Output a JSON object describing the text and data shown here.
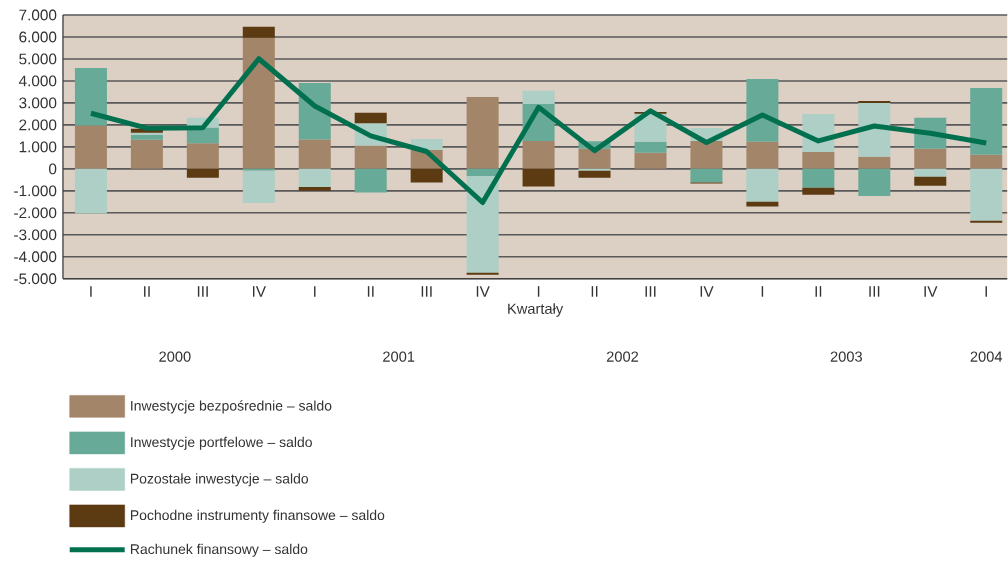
{
  "chart_data": {
    "type": "bar",
    "stacked": true,
    "xlabel": "Kwartały",
    "categories": [
      "I",
      "II",
      "III",
      "IV",
      "I",
      "II",
      "III",
      "IV",
      "I",
      "II",
      "III",
      "IV",
      "I",
      "II",
      "III",
      "IV",
      "I"
    ],
    "series": [
      {
        "name": "Inwestycje bezpośrednie – saldo",
        "color": "#a3856a",
        "values": [
          1970,
          1320,
          1170,
          5970,
          1330,
          1060,
          860,
          3270,
          1270,
          910,
          730,
          1270,
          1230,
          770,
          550,
          910,
          640
        ]
      },
      {
        "name": "Inwestycje portfelowe – saldo",
        "color": "#68aa98",
        "values": [
          2620,
          230,
          710,
          -90,
          2580,
          -1080,
          0,
          -320,
          1680,
          350,
          500,
          -620,
          2860,
          -860,
          -1230,
          1410,
          3040
        ]
      },
      {
        "name": "Pozostałe inwestycje – saldo",
        "color": "#adcfc6",
        "values": [
          -2030,
          90,
          450,
          -1460,
          -820,
          1020,
          500,
          -4410,
          600,
          -90,
          1280,
          590,
          -1500,
          1730,
          2450,
          -360,
          -2360
        ]
      },
      {
        "name": "Pochodne instrumenty finansowe – saldo",
        "color": "#5c3a12",
        "values": [
          0,
          180,
          -400,
          500,
          -180,
          470,
          -620,
          -90,
          -800,
          -310,
          80,
          -50,
          -210,
          -320,
          90,
          -410,
          -90
        ]
      },
      {
        "name": "Rachunek finansowy – saldo",
        "type": "line",
        "color": "#00704f",
        "values": [
          2530,
          1850,
          1870,
          5010,
          2860,
          1500,
          790,
          -1530,
          2800,
          830,
          2640,
          1200,
          2450,
          1270,
          1950,
          1620,
          1180
        ]
      }
    ],
    "ylim": [
      -5000,
      7000
    ],
    "yticks": [
      {
        "value": -5000,
        "label": "-5.000"
      },
      {
        "value": -4000,
        "label": "-4.000"
      },
      {
        "value": -3000,
        "label": "-3.000"
      },
      {
        "value": -2000,
        "label": "-2.000"
      },
      {
        "value": -1000,
        "label": "-1.000"
      },
      0,
      {
        "value": 1000,
        "label": "1.000"
      },
      {
        "value": 2000,
        "label": "2.000"
      },
      {
        "value": 3000,
        "label": "3.000"
      },
      {
        "value": 4000,
        "label": "4.000"
      },
      {
        "value": 5000,
        "label": "5.000"
      },
      {
        "value": 6000,
        "label": "6.000"
      },
      {
        "value": 7000,
        "label": "7.000"
      }
    ],
    "grid": "y",
    "legend": "bottom",
    "annotations": [
      "2000",
      "2001",
      "2002",
      "2003",
      "2004"
    ]
  }
}
